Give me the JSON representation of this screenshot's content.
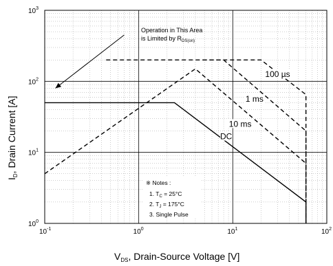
{
  "chart_data": {
    "type": "line",
    "title": "",
    "x_axis": {
      "label_main": "V",
      "label_sub": "DS",
      "label_rest": ", Drain-Source Voltage [V]",
      "scale": "log",
      "range": [
        0.1,
        100
      ],
      "tick_values": [
        0.1,
        1,
        10,
        100
      ],
      "tick_exponents": [
        "-1",
        "0",
        "1",
        "2"
      ]
    },
    "y_axis": {
      "label_main": "I",
      "label_sub": "D",
      "label_rest": ", Drain Current [A]",
      "scale": "log",
      "range": [
        1,
        1000
      ],
      "tick_values": [
        1,
        10,
        100,
        1000
      ],
      "tick_exponents": [
        "0",
        "1",
        "2",
        "3"
      ]
    },
    "tick_base": "10",
    "grid": true,
    "series": [
      {
        "name": "DC",
        "style": "solid",
        "points": [
          [
            0.1,
            50
          ],
          [
            2.4,
            50
          ],
          [
            60,
            2
          ],
          [
            60,
            1
          ]
        ]
      },
      {
        "name": "10 ms",
        "style": "dashed",
        "points": [
          [
            0.1,
            5
          ],
          [
            4,
            150
          ],
          [
            60,
            7
          ],
          [
            60,
            1
          ]
        ]
      },
      {
        "name": "1 ms",
        "style": "dashed",
        "points": [
          [
            4.8,
            200
          ],
          [
            8,
            200
          ],
          [
            60,
            20
          ],
          [
            60,
            1
          ]
        ]
      },
      {
        "name": "100 µs",
        "style": "dashed",
        "points": [
          [
            0.45,
            200
          ],
          [
            20,
            200
          ],
          [
            60,
            65
          ],
          [
            60,
            1
          ]
        ]
      }
    ],
    "curve_labels": [
      {
        "text": "100 µs",
        "at": [
          30,
          120
        ]
      },
      {
        "text": "1 ms",
        "at": [
          17,
          54
        ]
      },
      {
        "text": "10 ms",
        "at": [
          12,
          24
        ]
      },
      {
        "text": "DC",
        "at": [
          8.5,
          16
        ]
      }
    ],
    "annotation": {
      "line1": "Operation in This Area",
      "line2_main": "is Limited by R",
      "line2_sub": "DS(on)",
      "arrow_from": [
        0.7,
        450
      ],
      "arrow_to": [
        0.13,
        80
      ]
    },
    "notes": {
      "heading": "※ Notes :",
      "note1_prefix": "1. T",
      "note1_sub": "C",
      "note1_value": " = 25°C",
      "note2_prefix": "2. T",
      "note2_sub": "J",
      "note2_value": " = 175°C",
      "note3": "3. Single Pulse"
    }
  }
}
